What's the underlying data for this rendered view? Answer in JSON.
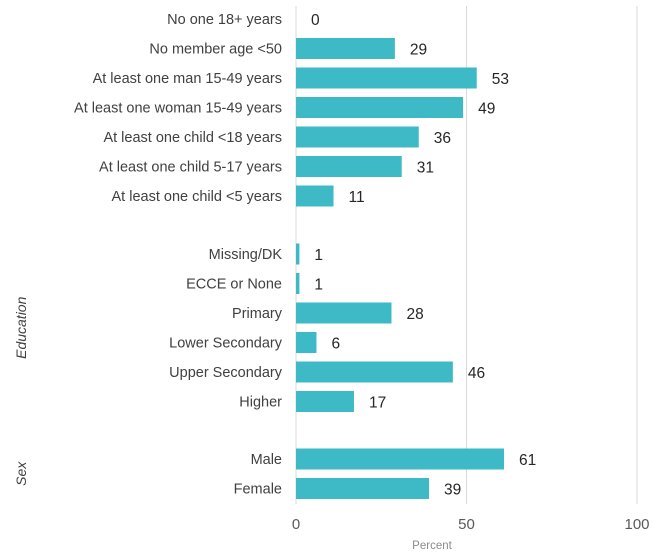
{
  "chart_data": {
    "type": "bar",
    "orientation": "horizontal",
    "categories": [
      "No one 18+ years",
      "No member age <50",
      "At least one man 15-49 years",
      "At least one woman 15-49 years",
      "At least one child <18 years",
      "At least one child 5-17 years",
      "At least one child <5 years",
      "Missing/DK",
      "ECCE or None",
      "Primary",
      "Lower Secondary",
      "Upper Secondary",
      "Higher",
      "Male",
      "Female"
    ],
    "values": [
      0,
      29,
      53,
      49,
      36,
      31,
      11,
      1,
      1,
      28,
      6,
      46,
      17,
      61,
      39
    ],
    "groups": [
      {
        "label": "",
        "categories": [
          "No one 18+ years",
          "No member age <50",
          "At least one man 15-49 years",
          "At least one woman 15-49 years",
          "At least one child <18 years",
          "At least one child 5-17 years",
          "At least one child <5 years"
        ]
      },
      {
        "label": "Education",
        "categories": [
          "Missing/DK",
          "ECCE or None",
          "Primary",
          "Lower Secondary",
          "Upper Secondary",
          "Higher"
        ]
      },
      {
        "label": "Sex",
        "categories": [
          "Male",
          "Female"
        ]
      }
    ],
    "xlabel": "Percent",
    "ylabel": "",
    "xlim": [
      0,
      100
    ],
    "xticks": [
      0,
      50,
      100
    ],
    "grid": true,
    "bar_color": "#3dbac5",
    "grid_color": "#d9d9d9"
  }
}
